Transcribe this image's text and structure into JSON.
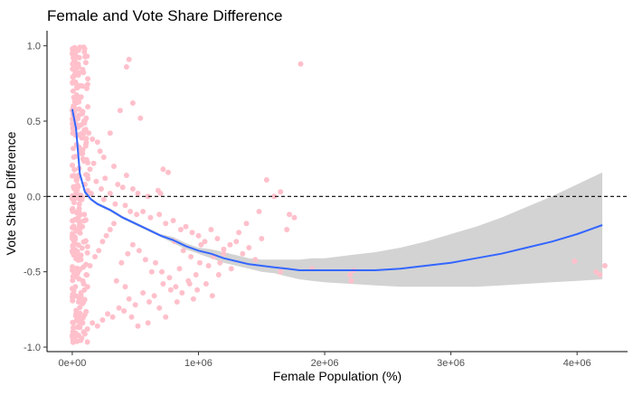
{
  "chart_data": {
    "type": "scatter",
    "title": "Female and Vote Share Difference",
    "xlabel": "Female Population (%)",
    "ylabel": "Vote Share Difference",
    "xlim": [
      -200000,
      4400000
    ],
    "ylim": [
      -1.03,
      1.1
    ],
    "x_ticks": [
      0,
      1000000,
      2000000,
      3000000,
      4000000
    ],
    "x_tick_labels": [
      "0e+00",
      "1e+06",
      "2e+06",
      "3e+06",
      "4e+06"
    ],
    "y_ticks": [
      -1.0,
      -0.5,
      0.0,
      0.5,
      1.0
    ],
    "y_tick_labels": [
      "-1.0",
      "-0.5",
      "0.0",
      "0.5",
      "1.0"
    ],
    "grid": false,
    "colors": {
      "points": "#FFC0CB",
      "trend": "#3366FF",
      "ribbon": "#D3D3D3",
      "reference": "#000000"
    },
    "reference_line": {
      "y": 0,
      "style": "dashed"
    },
    "points": [
      [
        2000,
        0.98
      ],
      [
        5000,
        0.95
      ],
      [
        8000,
        0.92
      ],
      [
        3000,
        0.88
      ],
      [
        12000,
        0.85
      ],
      [
        20000,
        0.9
      ],
      [
        35000,
        0.97
      ],
      [
        60000,
        0.99
      ],
      [
        90000,
        0.99
      ],
      [
        50000,
        0.86
      ],
      [
        15000,
        0.8
      ],
      [
        25000,
        0.76
      ],
      [
        40000,
        0.72
      ],
      [
        7000,
        0.7
      ],
      [
        70000,
        0.66
      ],
      [
        30000,
        0.62
      ],
      [
        10000,
        0.6
      ],
      [
        55000,
        0.58
      ],
      [
        80000,
        0.55
      ],
      [
        110000,
        0.52
      ],
      [
        18000,
        0.5
      ],
      [
        45000,
        0.46
      ],
      [
        95000,
        0.44
      ],
      [
        130000,
        0.42
      ],
      [
        160000,
        0.38
      ],
      [
        200000,
        0.36
      ],
      [
        220000,
        0.3
      ],
      [
        250000,
        0.26
      ],
      [
        170000,
        0.22
      ],
      [
        140000,
        0.18
      ],
      [
        330000,
        0.2
      ],
      [
        430000,
        0.14
      ],
      [
        260000,
        0.12
      ],
      [
        360000,
        0.08
      ],
      [
        400000,
        0.06
      ],
      [
        480000,
        0.05
      ],
      [
        520000,
        0.02
      ],
      [
        600000,
        0.0
      ],
      [
        680000,
        0.04
      ],
      [
        700000,
        0.02
      ],
      [
        300000,
        0.02
      ],
      [
        230000,
        0.05
      ],
      [
        190000,
        0.1
      ],
      [
        120000,
        0.14
      ],
      [
        65000,
        0.3
      ],
      [
        85000,
        0.25
      ],
      [
        100000,
        0.08
      ],
      [
        150000,
        0.02
      ],
      [
        250000,
        -0.02
      ],
      [
        340000,
        -0.05
      ],
      [
        420000,
        -0.06
      ],
      [
        460000,
        -0.1
      ],
      [
        510000,
        -0.12
      ],
      [
        560000,
        -0.1
      ],
      [
        620000,
        -0.14
      ],
      [
        690000,
        -0.12
      ],
      [
        740000,
        -0.18
      ],
      [
        800000,
        -0.16
      ],
      [
        860000,
        -0.22
      ],
      [
        900000,
        -0.2
      ],
      [
        950000,
        -0.24
      ],
      [
        1000000,
        -0.26
      ],
      [
        1050000,
        -0.3
      ],
      [
        1100000,
        -0.22
      ],
      [
        1150000,
        -0.28
      ],
      [
        1200000,
        -0.35
      ],
      [
        1250000,
        -0.32
      ],
      [
        1300000,
        -0.3
      ],
      [
        1350000,
        -0.38
      ],
      [
        1400000,
        -0.34
      ],
      [
        1450000,
        -0.42
      ],
      [
        1500000,
        -0.28
      ],
      [
        1170000,
        -0.44
      ],
      [
        1080000,
        -0.46
      ],
      [
        980000,
        -0.52
      ],
      [
        920000,
        -0.56
      ],
      [
        850000,
        -0.48
      ],
      [
        780000,
        -0.62
      ],
      [
        720000,
        -0.58
      ],
      [
        650000,
        -0.66
      ],
      [
        610000,
        -0.7
      ],
      [
        560000,
        -0.64
      ],
      [
        500000,
        -0.72
      ],
      [
        450000,
        -0.68
      ],
      [
        410000,
        -0.76
      ],
      [
        370000,
        -0.74
      ],
      [
        320000,
        -0.8
      ],
      [
        280000,
        -0.78
      ],
      [
        240000,
        -0.82
      ],
      [
        200000,
        -0.86
      ],
      [
        160000,
        -0.84
      ],
      [
        120000,
        -0.88
      ],
      [
        90000,
        -0.9
      ],
      [
        60000,
        -0.87
      ],
      [
        40000,
        -0.92
      ],
      [
        20000,
        -0.94
      ],
      [
        5000,
        -0.9
      ],
      [
        10000,
        -0.84
      ],
      [
        30000,
        -0.78
      ],
      [
        50000,
        -0.7
      ],
      [
        70000,
        -0.64
      ],
      [
        90000,
        -0.58
      ],
      [
        110000,
        -0.52
      ],
      [
        140000,
        -0.46
      ],
      [
        180000,
        -0.4
      ],
      [
        210000,
        -0.36
      ],
      [
        240000,
        -0.3
      ],
      [
        270000,
        -0.26
      ],
      [
        300000,
        -0.22
      ],
      [
        330000,
        -0.18
      ],
      [
        80000,
        -0.2
      ],
      [
        100000,
        -0.3
      ],
      [
        60000,
        -0.4
      ],
      [
        40000,
        -0.5
      ],
      [
        25000,
        -0.6
      ],
      [
        15000,
        -0.3
      ],
      [
        35000,
        -0.15
      ],
      [
        55000,
        -0.08
      ],
      [
        75000,
        -0.02
      ],
      [
        95000,
        -0.12
      ],
      [
        1540000,
        0.11
      ],
      [
        1650000,
        0.03
      ],
      [
        1600000,
        0.0
      ],
      [
        1480000,
        -0.1
      ],
      [
        1380000,
        -0.18
      ],
      [
        1720000,
        -0.12
      ],
      [
        1760000,
        -0.14
      ],
      [
        1700000,
        -0.22
      ],
      [
        1810000,
        0.88
      ],
      [
        450000,
        0.91
      ],
      [
        430000,
        0.86
      ],
      [
        480000,
        0.62
      ],
      [
        380000,
        0.57
      ],
      [
        540000,
        0.52
      ],
      [
        300000,
        0.42
      ],
      [
        720000,
        0.18
      ],
      [
        760000,
        0.16
      ],
      [
        810000,
        -0.3
      ],
      [
        1020000,
        -0.32
      ],
      [
        1120000,
        -0.4
      ],
      [
        2200000,
        -0.52
      ],
      [
        2210000,
        -0.56
      ],
      [
        2230000,
        -0.49
      ],
      [
        3980000,
        -0.43
      ],
      [
        4150000,
        -0.5
      ],
      [
        4180000,
        -0.52
      ],
      [
        4220000,
        -0.46
      ],
      [
        1650000,
        -0.5
      ],
      [
        1900000,
        -0.48
      ],
      [
        1320000,
        -0.24
      ],
      [
        880000,
        -0.36
      ],
      [
        940000,
        -0.4
      ],
      [
        1010000,
        -0.44
      ],
      [
        1160000,
        -0.52
      ],
      [
        1060000,
        -0.58
      ],
      [
        990000,
        -0.62
      ],
      [
        1110000,
        -0.66
      ],
      [
        830000,
        -0.7
      ],
      [
        690000,
        -0.74
      ],
      [
        740000,
        -0.8
      ],
      [
        600000,
        -0.84
      ],
      [
        520000,
        -0.86
      ],
      [
        470000,
        -0.8
      ],
      [
        420000,
        -0.6
      ],
      [
        350000,
        -0.56
      ],
      [
        390000,
        -0.44
      ],
      [
        440000,
        -0.38
      ],
      [
        480000,
        -0.32
      ],
      [
        530000,
        -0.36
      ],
      [
        580000,
        -0.42
      ],
      [
        630000,
        -0.5
      ],
      [
        660000,
        -0.44
      ],
      [
        710000,
        -0.5
      ],
      [
        770000,
        -0.54
      ],
      [
        820000,
        -0.6
      ],
      [
        870000,
        -0.64
      ],
      [
        930000,
        -0.58
      ],
      [
        960000,
        -0.68
      ],
      [
        1200000,
        -0.38
      ],
      [
        1260000,
        -0.48
      ]
    ],
    "dense_band": {
      "x_range": [
        0,
        130000
      ],
      "y_range": [
        -0.97,
        0.99
      ],
      "count": 260
    },
    "trend": {
      "x": [
        0,
        30000,
        60000,
        100000,
        150000,
        200000,
        300000,
        400000,
        500000,
        600000,
        700000,
        800000,
        900000,
        1000000,
        1100000,
        1200000,
        1300000,
        1400000,
        1500000,
        1600000,
        1700000,
        1800000,
        1900000,
        2000000,
        2200000,
        2400000,
        2600000,
        2800000,
        3000000,
        3200000,
        3400000,
        3600000,
        3800000,
        4000000,
        4200000
      ],
      "y": [
        0.58,
        0.45,
        0.15,
        0.03,
        -0.02,
        -0.05,
        -0.09,
        -0.14,
        -0.18,
        -0.22,
        -0.26,
        -0.29,
        -0.33,
        -0.36,
        -0.38,
        -0.41,
        -0.43,
        -0.45,
        -0.46,
        -0.47,
        -0.48,
        -0.49,
        -0.49,
        -0.49,
        -0.49,
        -0.49,
        -0.48,
        -0.46,
        -0.44,
        -0.41,
        -0.38,
        -0.34,
        -0.3,
        -0.25,
        -0.19
      ],
      "lower": [
        0.56,
        0.43,
        0.13,
        0.01,
        -0.03,
        -0.06,
        -0.1,
        -0.15,
        -0.19,
        -0.23,
        -0.27,
        -0.31,
        -0.35,
        -0.38,
        -0.41,
        -0.44,
        -0.46,
        -0.48,
        -0.5,
        -0.51,
        -0.53,
        -0.55,
        -0.56,
        -0.57,
        -0.58,
        -0.59,
        -0.6,
        -0.6,
        -0.6,
        -0.6,
        -0.59,
        -0.58,
        -0.57,
        -0.56,
        -0.55
      ],
      "upper": [
        0.6,
        0.47,
        0.17,
        0.05,
        -0.01,
        -0.04,
        -0.08,
        -0.13,
        -0.17,
        -0.21,
        -0.25,
        -0.27,
        -0.31,
        -0.34,
        -0.35,
        -0.37,
        -0.39,
        -0.41,
        -0.42,
        -0.42,
        -0.42,
        -0.42,
        -0.41,
        -0.41,
        -0.39,
        -0.37,
        -0.34,
        -0.3,
        -0.25,
        -0.2,
        -0.14,
        -0.07,
        0.0,
        0.08,
        0.16
      ]
    }
  }
}
